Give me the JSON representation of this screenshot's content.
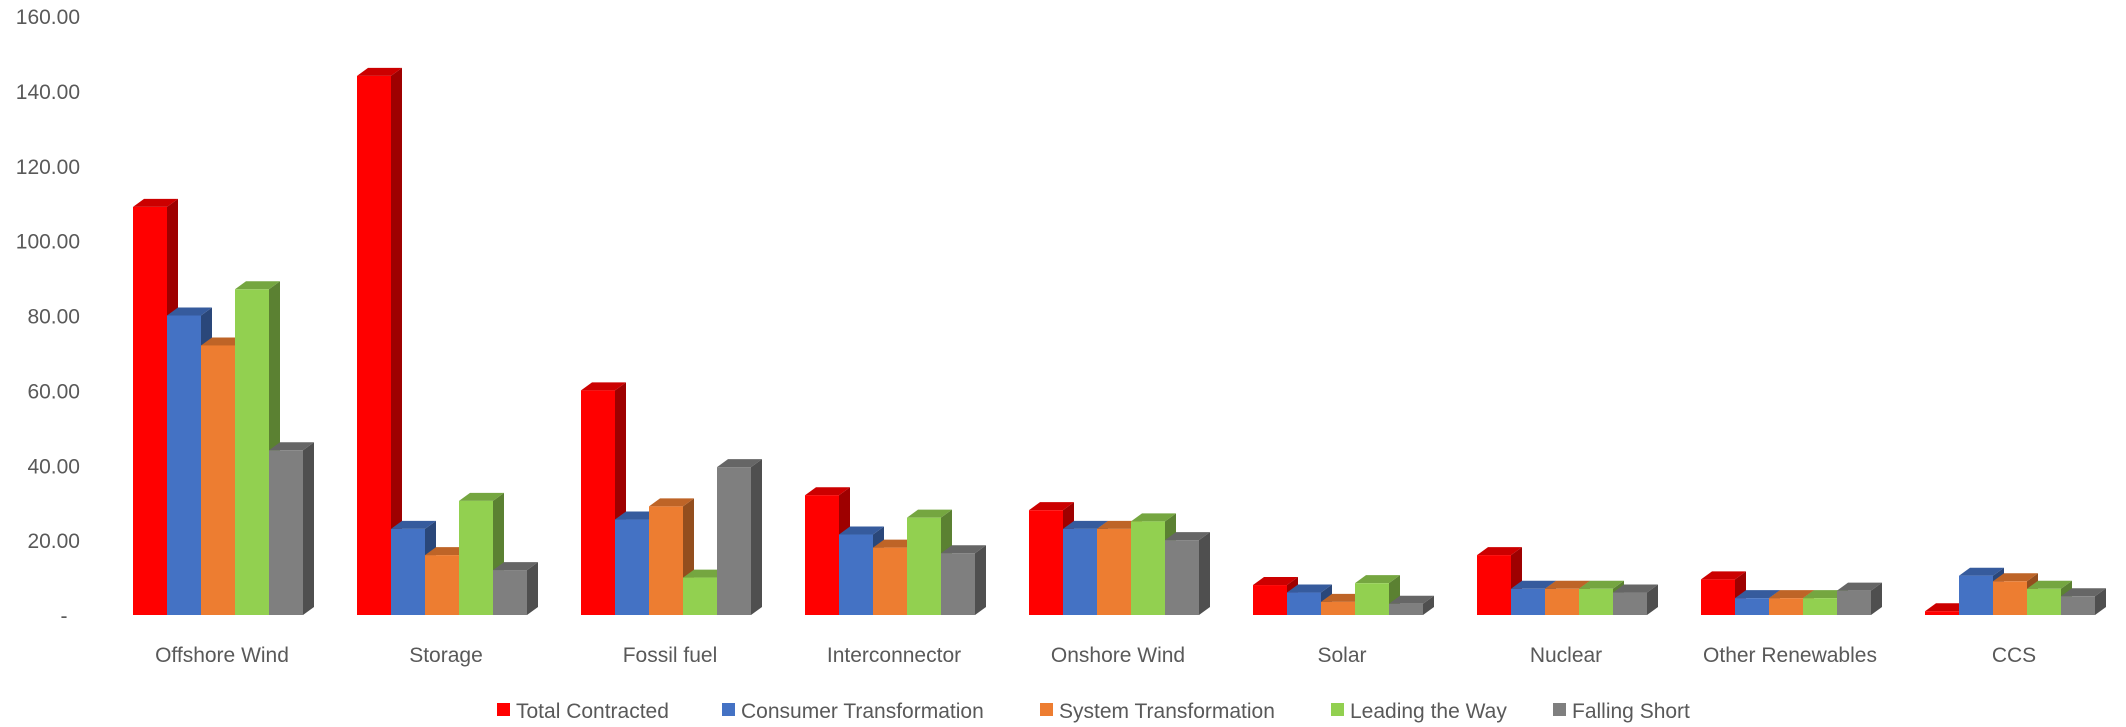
{
  "chart_data": {
    "type": "bar",
    "title": "",
    "xlabel": "",
    "ylabel": "",
    "ylim": [
      0,
      160
    ],
    "y_ticks": [
      "-",
      "20.00",
      "40.00",
      "60.00",
      "80.00",
      "100.00",
      "120.00",
      "140.00",
      "160.00"
    ],
    "y_tick_values": [
      0,
      20,
      40,
      60,
      80,
      100,
      120,
      140,
      160
    ],
    "grid": false,
    "legend_position": "bottom",
    "categories": [
      "Offshore Wind",
      "Storage",
      "Fossil fuel",
      "Interconnector",
      "Onshore Wind",
      "Solar",
      "Nuclear",
      "Other Renewables",
      "CCS"
    ],
    "series": [
      {
        "name": "Total Contracted",
        "color": "#ff0000",
        "values": [
          109,
          144,
          60,
          32,
          28,
          8,
          16,
          9.5,
          1
        ]
      },
      {
        "name": "Consumer Transformation",
        "color": "#4472c4",
        "values": [
          80,
          23,
          25.5,
          21.5,
          23,
          6,
          7,
          4.5,
          10.5
        ]
      },
      {
        "name": "System Transformation",
        "color": "#ed7d31",
        "values": [
          72,
          16,
          29,
          18,
          23,
          3.5,
          7,
          4.5,
          9
        ]
      },
      {
        "name": "Leading the Way",
        "color": "#92d050",
        "values": [
          87,
          30.5,
          10,
          26,
          25,
          8.5,
          7,
          4.5,
          7
        ]
      },
      {
        "name": "Falling Short",
        "color": "#7f7f7f",
        "values": [
          44,
          12,
          39.5,
          16.5,
          20,
          3,
          6,
          6.5,
          5
        ]
      }
    ]
  }
}
